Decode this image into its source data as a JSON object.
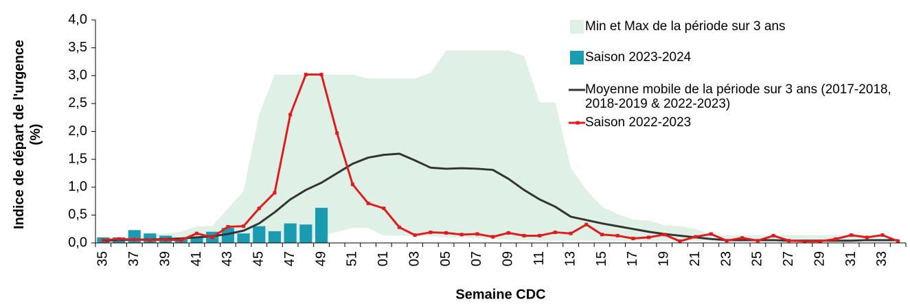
{
  "chart_data": {
    "type": "combo",
    "x_label": "Semaine CDC",
    "y_label": "Indice de départ de l'urgence (%)",
    "categories": [
      "35",
      null,
      "37",
      null,
      "39",
      null,
      "41",
      null,
      "43",
      null,
      "45",
      null,
      "47",
      null,
      "49",
      null,
      "51",
      null,
      "01",
      null,
      "03",
      null,
      "05",
      null,
      "07",
      null,
      "09",
      null,
      "11",
      null,
      "13",
      null,
      "15",
      null,
      "17",
      null,
      "19",
      null,
      "21",
      null,
      "23",
      null,
      "25",
      null,
      "27",
      null,
      "29",
      null,
      "31",
      null,
      "33",
      null
    ],
    "ylim": [
      0,
      4
    ],
    "yticks": [
      {
        "value": 0,
        "label": "0,0"
      },
      {
        "value": 0.5,
        "label": "0,5"
      },
      {
        "value": 1,
        "label": "1,0"
      },
      {
        "value": 1.5,
        "label": "1,5"
      },
      {
        "value": 2,
        "label": "2,0"
      },
      {
        "value": 2.5,
        "label": "2,5"
      },
      {
        "value": 3,
        "label": "3,0"
      },
      {
        "value": 3.5,
        "label": "3,5"
      },
      {
        "value": 4,
        "label": "4,0"
      }
    ],
    "grid": false,
    "series": [
      {
        "name": "Min et Max de la période sur 3 ans",
        "type": "band",
        "color": "#dff0e6",
        "high": [
          0.1,
          0.1,
          0.12,
          0.15,
          0.17,
          0.2,
          0.3,
          0.3,
          0.62,
          0.92,
          2.3,
          3.02,
          3.02,
          3.02,
          3.02,
          3.02,
          3.02,
          2.95,
          2.95,
          2.95,
          2.95,
          3.05,
          3.45,
          3.45,
          3.45,
          3.45,
          3.45,
          3.35,
          2.52,
          2.52,
          1.35,
          0.95,
          0.65,
          0.52,
          0.42,
          0.4,
          0.32,
          0.3,
          0.25,
          0.15,
          0.14,
          0.14,
          0.14,
          0.14,
          0.14,
          0.14,
          0.14,
          0.14,
          0.12,
          0.1,
          0.08,
          0.08
        ],
        "low": [
          0.02,
          0.02,
          0.02,
          0.02,
          0.02,
          0.02,
          0.02,
          0.02,
          0.02,
          0.02,
          0.02,
          0.02,
          0.02,
          0.02,
          0.13,
          0.2,
          0.27,
          0.27,
          0.13,
          0.13,
          0.13,
          0.12,
          0.1,
          0.1,
          0.08,
          0.07,
          0.06,
          0.05,
          0.04,
          0.04,
          0.04,
          0.04,
          0.04,
          0.04,
          0.04,
          0.04,
          0.04,
          0.04,
          0.04,
          0.04,
          0.04,
          0.04,
          0.04,
          0.04,
          0.04,
          0.04,
          0.04,
          0.04,
          0.04,
          0.04,
          0.04,
          0.04
        ]
      },
      {
        "name": "Saison 2023-2024",
        "type": "bar",
        "color": "#1a9bb0",
        "values": [
          0.1,
          0.1,
          0.23,
          0.17,
          0.13,
          0.09,
          0.1,
          0.2,
          0.27,
          0.17,
          0.3,
          0.21,
          0.35,
          0.33,
          0.63,
          null,
          null,
          null,
          null,
          null,
          null,
          null,
          null,
          null,
          null,
          null,
          null,
          null,
          null,
          null,
          null,
          null,
          null,
          null,
          null,
          null,
          null,
          null,
          null,
          null,
          null,
          null,
          null,
          null,
          null,
          null,
          null,
          null,
          null,
          null,
          null,
          null
        ]
      },
      {
        "name": "Moyenne mobile de la période sur 3 ans (2017-2018, 2018-2019 & 2022-2023)",
        "type": "line",
        "color": "#333333",
        "marker": false,
        "values": [
          0.04,
          0.05,
          0.06,
          0.06,
          0.07,
          0.08,
          0.1,
          0.12,
          0.16,
          0.22,
          0.35,
          0.55,
          0.78,
          0.95,
          1.08,
          1.25,
          1.42,
          1.53,
          1.58,
          1.6,
          1.48,
          1.35,
          1.33,
          1.34,
          1.33,
          1.31,
          1.15,
          0.95,
          0.78,
          0.65,
          0.47,
          0.41,
          0.35,
          0.3,
          0.25,
          0.2,
          0.16,
          0.13,
          0.1,
          0.07,
          0.05,
          0.05,
          0.05,
          0.05,
          0.04,
          0.04,
          0.04,
          0.04,
          0.04,
          0.05,
          0.05,
          0.05
        ]
      },
      {
        "name": "Saison 2022-2023",
        "type": "line",
        "color": "#e31a1c",
        "marker": true,
        "values": [
          0.05,
          0.07,
          0.06,
          0.05,
          0.06,
          0.05,
          0.17,
          0.1,
          0.29,
          0.3,
          0.62,
          0.9,
          2.3,
          3.02,
          3.02,
          1.97,
          1.05,
          0.71,
          0.62,
          0.28,
          0.14,
          0.19,
          0.18,
          0.15,
          0.16,
          0.11,
          0.18,
          0.13,
          0.13,
          0.19,
          0.17,
          0.33,
          0.15,
          0.13,
          0.08,
          0.1,
          0.15,
          0.03,
          0.11,
          0.16,
          0.04,
          0.09,
          0.04,
          0.13,
          0.04,
          0.03,
          0.03,
          0.07,
          0.14,
          0.1,
          0.14,
          0.03
        ]
      }
    ]
  }
}
